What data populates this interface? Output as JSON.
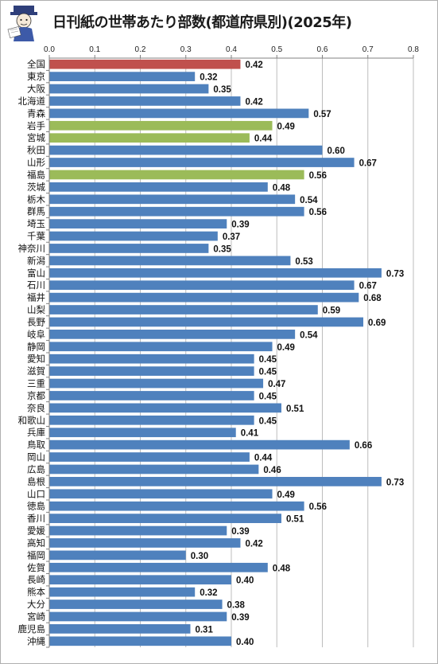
{
  "chart_data": {
    "type": "bar",
    "orientation": "horizontal",
    "title": "日刊紙の世帯あたり部数(都道府県別)(2025年)",
    "xlim": [
      0,
      0.8
    ],
    "xticks": [
      "0.0",
      "0.1",
      "0.2",
      "0.3",
      "0.4",
      "0.5",
      "0.6",
      "0.7",
      "0.8"
    ],
    "grid": true,
    "categories": [
      "全国",
      "東京",
      "大阪",
      "北海道",
      "青森",
      "岩手",
      "宮城",
      "秋田",
      "山形",
      "福島",
      "茨城",
      "栃木",
      "群馬",
      "埼玉",
      "千葉",
      "神奈川",
      "新潟",
      "富山",
      "石川",
      "福井",
      "山梨",
      "長野",
      "岐阜",
      "静岡",
      "愛知",
      "滋賀",
      "三重",
      "京都",
      "奈良",
      "和歌山",
      "兵庫",
      "鳥取",
      "岡山",
      "広島",
      "島根",
      "山口",
      "徳島",
      "香川",
      "愛媛",
      "高知",
      "福岡",
      "佐賀",
      "長崎",
      "熊本",
      "大分",
      "宮崎",
      "鹿児島",
      "沖縄"
    ],
    "values": [
      0.42,
      0.32,
      0.35,
      0.42,
      0.57,
      0.49,
      0.44,
      0.6,
      0.67,
      0.56,
      0.48,
      0.54,
      0.56,
      0.39,
      0.37,
      0.35,
      0.53,
      0.73,
      0.67,
      0.68,
      0.59,
      0.69,
      0.54,
      0.49,
      0.45,
      0.45,
      0.47,
      0.45,
      0.51,
      0.45,
      0.41,
      0.66,
      0.44,
      0.46,
      0.73,
      0.49,
      0.56,
      0.51,
      0.39,
      0.42,
      0.3,
      0.48,
      0.4,
      0.32,
      0.38,
      0.39,
      0.31,
      0.4
    ],
    "labels": [
      "0.42",
      "0.32",
      "0.35",
      "0.42",
      "0.57",
      "0.49",
      "0.44",
      "0.60",
      "0.67",
      "0.56",
      "0.48",
      "0.54",
      "0.56",
      "0.39",
      "0.37",
      "0.35",
      "0.53",
      "0.73",
      "0.67",
      "0.68",
      "0.59",
      "0.69",
      "0.54",
      "0.49",
      "0.45",
      "0.45",
      "0.47",
      "0.45",
      "0.51",
      "0.45",
      "0.41",
      "0.66",
      "0.44",
      "0.46",
      "0.73",
      "0.49",
      "0.56",
      "0.51",
      "0.39",
      "0.42",
      "0.30",
      "0.48",
      "0.40",
      "0.32",
      "0.38",
      "0.39",
      "0.31",
      "0.40"
    ],
    "highlight": {
      "全国": "#c0504d",
      "岩手": "#9bbb59",
      "宮城": "#9bbb59",
      "福島": "#9bbb59"
    },
    "colors": {
      "bar": "#4f81bd",
      "grid": "#bdbdbd",
      "axis": "#808080"
    }
  }
}
